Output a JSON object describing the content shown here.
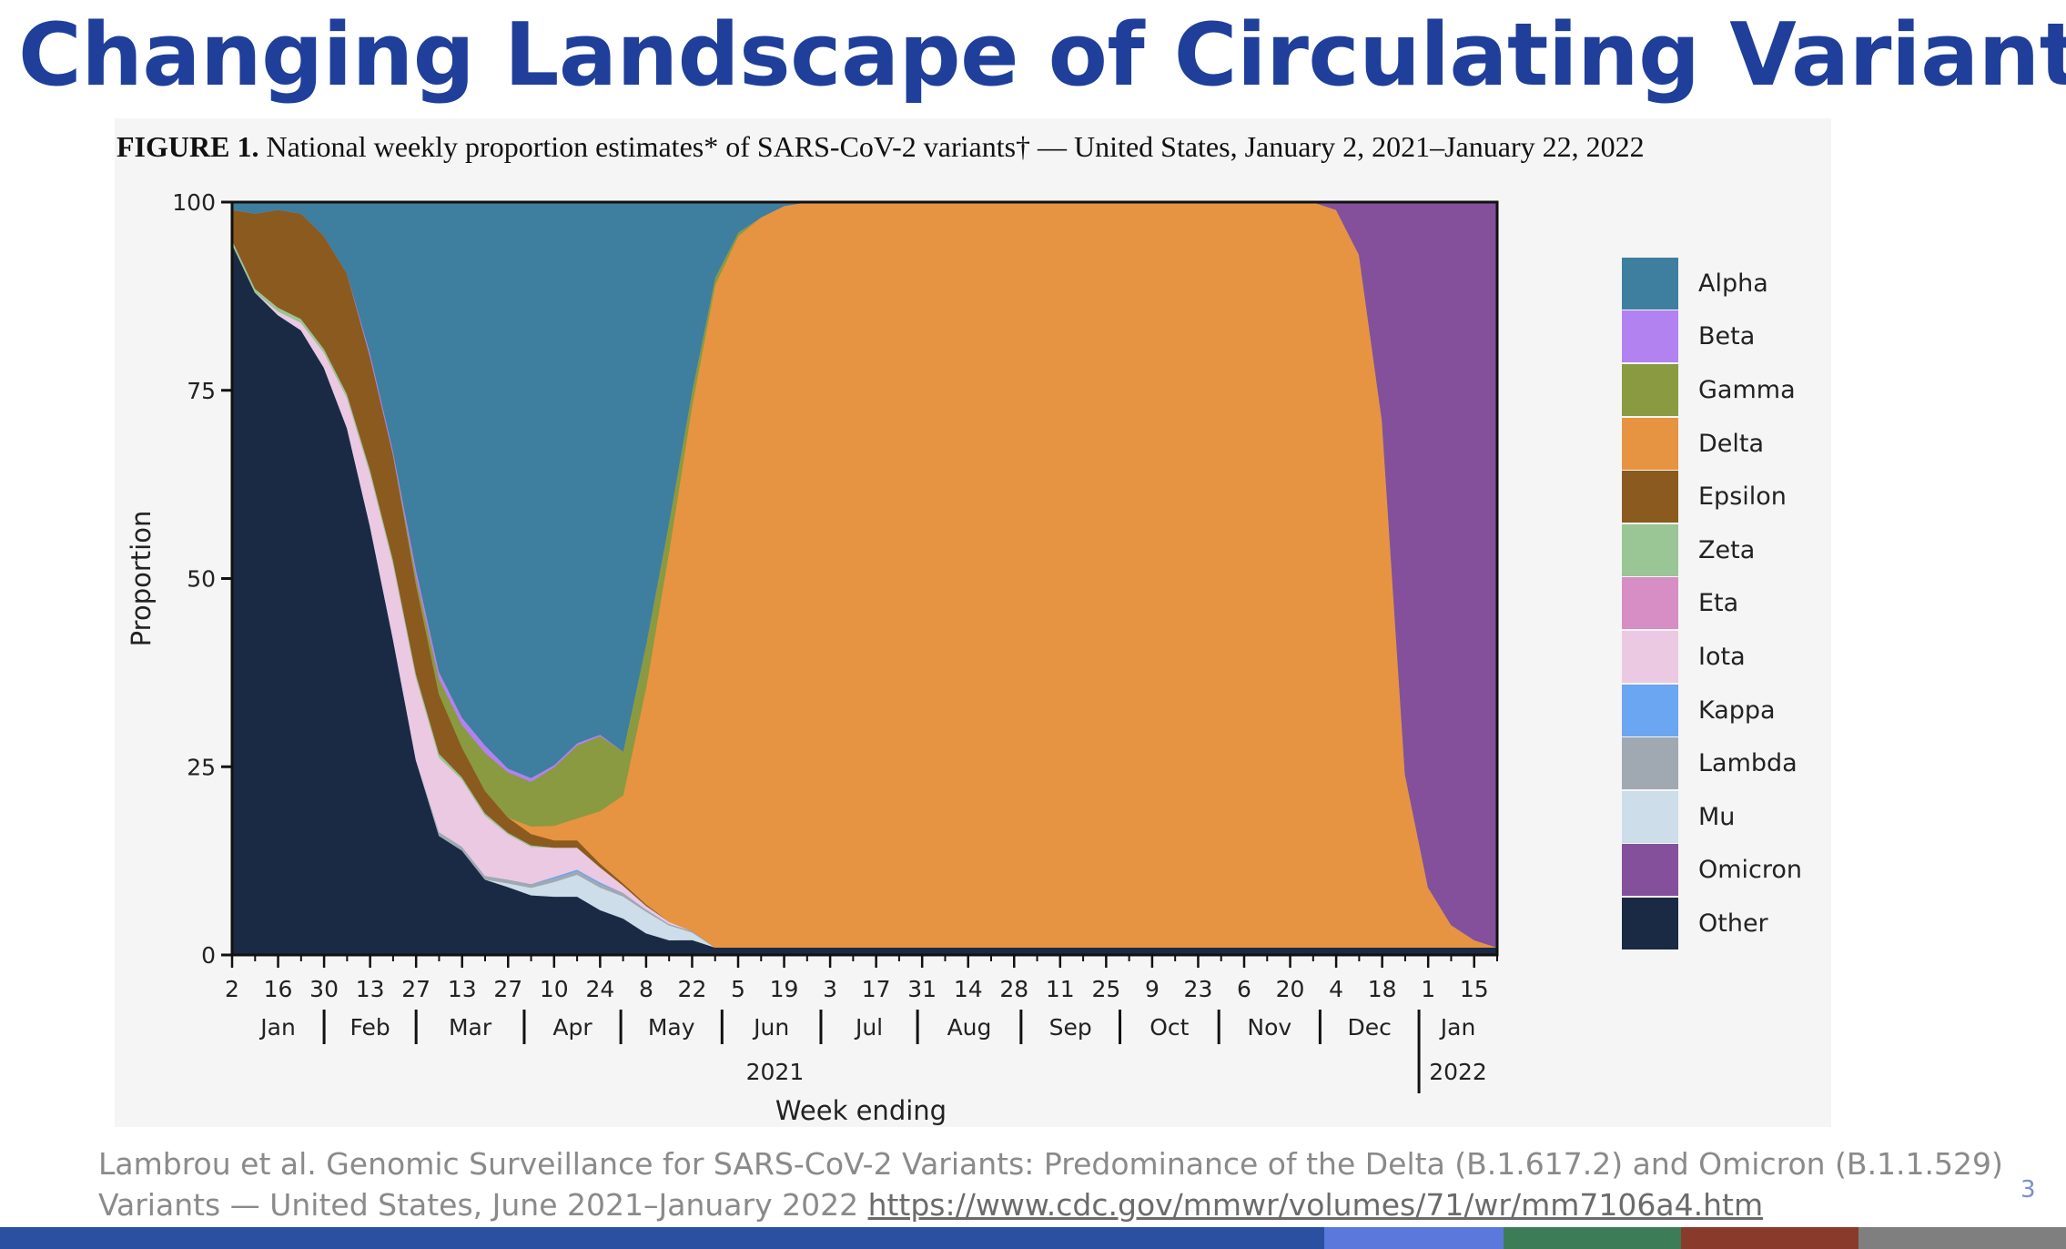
{
  "slide": {
    "title": "Changing Landscape of Circulating Variants",
    "citation_line1": "Lambrou et al. Genomic Surveillance for SARS-CoV-2 Variants: Predominance of the Delta (B.1.617.2) and Omicron (B.1.1.529)",
    "citation_line2_text": "Variants — United States, June 2021–January 2022 ",
    "citation_url": "https://www.cdc.gov/mmwr/volumes/71/wr/mm7106a4.htm",
    "page_number": "3",
    "footer_colors": [
      "#2b4fa1",
      "#5b78dd",
      "#3c7d58",
      "#8a3a2a",
      "#7f7f7f"
    ]
  },
  "chart_data": {
    "type": "area",
    "stacked": true,
    "figure_label": "FIGURE 1.",
    "title": "National weekly proportion estimates* of SARS-CoV-2 variants† — United States, January 2, 2021–January 22, 2022",
    "xlabel": "Week ending",
    "ylabel": "Proportion",
    "ylim": [
      0,
      100
    ],
    "yticks": [
      0,
      25,
      50,
      75,
      100
    ],
    "x_week_labels": [
      "2",
      "16",
      "30",
      "13",
      "27",
      "13",
      "27",
      "10",
      "24",
      "8",
      "22",
      "5",
      "19",
      "3",
      "17",
      "31",
      "14",
      "28",
      "11",
      "25",
      "9",
      "23",
      "6",
      "20",
      "4",
      "18",
      "1",
      "15"
    ],
    "x_label_weeks": [
      0,
      2,
      4,
      6,
      8,
      10,
      12,
      14,
      16,
      18,
      20,
      22,
      24,
      26,
      28,
      30,
      32,
      34,
      36,
      38,
      40,
      42,
      44,
      46,
      48,
      50,
      52,
      54
    ],
    "months": [
      {
        "label": "Jan",
        "start": 0,
        "end": 4
      },
      {
        "label": "Feb",
        "start": 4,
        "end": 8
      },
      {
        "label": "Mar",
        "start": 8,
        "end": 12.7
      },
      {
        "label": "Apr",
        "start": 12.7,
        "end": 16.9
      },
      {
        "label": "May",
        "start": 16.9,
        "end": 21.3
      },
      {
        "label": "Jun",
        "start": 21.3,
        "end": 25.6
      },
      {
        "label": "Jul",
        "start": 25.6,
        "end": 29.8
      },
      {
        "label": "Aug",
        "start": 29.8,
        "end": 34.3
      },
      {
        "label": "Sep",
        "start": 34.3,
        "end": 38.6
      },
      {
        "label": "Oct",
        "start": 38.6,
        "end": 42.9
      },
      {
        "label": "Nov",
        "start": 42.9,
        "end": 47.3
      },
      {
        "label": "Dec",
        "start": 47.3,
        "end": 51.6
      },
      {
        "label": "Jan",
        "start": 51.6,
        "end": 55
      }
    ],
    "year_labels": [
      {
        "label": "2021",
        "at": 23.6
      },
      {
        "label": "2022",
        "at": 53.3
      }
    ],
    "year_divider_week": 51.6,
    "x_max_week": 55,
    "week_points": [
      0,
      1,
      2,
      3,
      4,
      5,
      6,
      7,
      8,
      9,
      10,
      11,
      12,
      13,
      14,
      15,
      16,
      17,
      18,
      19,
      20,
      21,
      22,
      23,
      24,
      25,
      26,
      27,
      28,
      29,
      30,
      31,
      32,
      33,
      34,
      35,
      36,
      37,
      38,
      39,
      40,
      41,
      42,
      43,
      44,
      45,
      46,
      47,
      48,
      49,
      50,
      51,
      52,
      53,
      54,
      55
    ],
    "series": [
      {
        "name": "Other",
        "color": "#1b2a44",
        "values": [
          94,
          88,
          85,
          83,
          78,
          70,
          57,
          42,
          26,
          16,
          14,
          10,
          9,
          8,
          8,
          8,
          6,
          5,
          3,
          2,
          2,
          1,
          1,
          1,
          1,
          1,
          1,
          1,
          1,
          1,
          1,
          1,
          1,
          1,
          1,
          1,
          1,
          1,
          1,
          1,
          1,
          1,
          1,
          1,
          1,
          1,
          1,
          1,
          1,
          1,
          1,
          1,
          1,
          1,
          1,
          1
        ]
      },
      {
        "name": "Mu",
        "color": "#cdddea",
        "values": [
          0,
          0,
          0,
          0,
          0,
          0,
          0,
          0,
          0,
          0,
          0,
          0,
          0.5,
          1,
          2,
          3,
          3,
          3,
          3,
          2,
          1,
          0,
          0,
          0,
          0,
          0,
          0,
          0,
          0,
          0,
          0,
          0,
          0,
          0,
          0,
          0,
          0,
          0,
          0,
          0,
          0,
          0,
          0,
          0,
          0,
          0,
          0,
          0,
          0,
          0,
          0,
          0,
          0,
          0,
          0,
          0
        ]
      },
      {
        "name": "Lambda",
        "color": "#a0a8b2",
        "values": [
          0,
          0,
          0,
          0,
          0,
          0,
          0,
          0,
          0,
          0.5,
          0.5,
          0.5,
          0.5,
          0.5,
          0.5,
          0.5,
          0.5,
          0.5,
          0.3,
          0.2,
          0.2,
          0,
          0,
          0,
          0,
          0,
          0,
          0,
          0,
          0,
          0,
          0,
          0,
          0,
          0,
          0,
          0,
          0,
          0,
          0,
          0,
          0,
          0,
          0,
          0,
          0,
          0,
          0,
          0,
          0,
          0,
          0,
          0,
          0,
          0,
          0
        ]
      },
      {
        "name": "Kappa",
        "color": "#6aa6f2",
        "values": [
          0,
          0,
          0,
          0,
          0,
          0,
          0,
          0,
          0,
          0,
          0,
          0,
          0,
          0,
          0.2,
          0.2,
          0.2,
          0,
          0,
          0,
          0,
          0,
          0,
          0,
          0,
          0,
          0,
          0,
          0,
          0,
          0,
          0,
          0,
          0,
          0,
          0,
          0,
          0,
          0,
          0,
          0,
          0,
          0,
          0,
          0,
          0,
          0,
          0,
          0,
          0,
          0,
          0,
          0,
          0,
          0,
          0
        ]
      },
      {
        "name": "Iota",
        "color": "#ebc9e2",
        "values": [
          0,
          0,
          0.5,
          1,
          2,
          4,
          7,
          10,
          11,
          10,
          9,
          8,
          6,
          5,
          4,
          3,
          2,
          1,
          0.5,
          0.3,
          0,
          0,
          0,
          0,
          0,
          0,
          0,
          0,
          0,
          0,
          0,
          0,
          0,
          0,
          0,
          0,
          0,
          0,
          0,
          0,
          0,
          0,
          0,
          0,
          0,
          0,
          0,
          0,
          0,
          0,
          0,
          0,
          0,
          0,
          0,
          0
        ]
      },
      {
        "name": "Eta",
        "color": "#d78ec4",
        "values": [
          0,
          0,
          0,
          0,
          0,
          0,
          0,
          0,
          0,
          0,
          0,
          0,
          0,
          0,
          0,
          0,
          0,
          0,
          0,
          0,
          0,
          0,
          0,
          0,
          0,
          0,
          0,
          0,
          0,
          0,
          0,
          0,
          0,
          0,
          0,
          0,
          0,
          0,
          0,
          0,
          0,
          0,
          0,
          0,
          0,
          0,
          0,
          0,
          0,
          0,
          0,
          0,
          0,
          0,
          0,
          0
        ]
      },
      {
        "name": "Zeta",
        "color": "#9ac595",
        "values": [
          0.5,
          0.5,
          0.5,
          0.5,
          0.5,
          0.5,
          0.5,
          0.5,
          0.5,
          0.5,
          0.3,
          0.3,
          0.2,
          0.2,
          0,
          0,
          0,
          0,
          0,
          0,
          0,
          0,
          0,
          0,
          0,
          0,
          0,
          0,
          0,
          0,
          0,
          0,
          0,
          0,
          0,
          0,
          0,
          0,
          0,
          0,
          0,
          0,
          0,
          0,
          0,
          0,
          0,
          0,
          0,
          0,
          0,
          0,
          0,
          0,
          0,
          0
        ]
      },
      {
        "name": "Epsilon",
        "color": "#8a5a1f",
        "values": [
          4,
          10,
          13,
          14,
          15,
          16,
          15,
          14,
          12,
          8,
          4,
          3,
          2,
          1.5,
          1,
          1,
          0.5,
          0.3,
          0.2,
          0,
          0,
          0,
          0,
          0,
          0,
          0,
          0,
          0,
          0,
          0,
          0,
          0,
          0,
          0,
          0,
          0,
          0,
          0,
          0,
          0,
          0,
          0,
          0,
          0,
          0,
          0,
          0,
          0,
          0,
          0,
          0,
          0,
          0,
          0,
          0,
          0
        ]
      },
      {
        "name": "Delta",
        "color": "#e69442",
        "values": [
          0,
          0,
          0,
          0,
          0,
          0,
          0,
          0,
          0,
          0,
          0,
          0,
          0,
          1,
          2,
          3,
          7,
          12,
          30,
          50,
          70,
          88,
          94,
          97,
          98.5,
          99,
          99,
          99,
          99,
          99,
          99,
          99,
          99,
          99,
          99,
          99,
          99,
          99,
          99,
          99,
          99,
          99,
          99,
          99,
          99,
          99,
          99,
          99,
          98,
          92,
          70,
          23,
          8,
          3,
          1,
          0
        ]
      },
      {
        "name": "Gamma",
        "color": "#8a9a40",
        "values": [
          0,
          0,
          0,
          0,
          0,
          0,
          0,
          0,
          1,
          2,
          3,
          5,
          6,
          6,
          8,
          10,
          10,
          6,
          6,
          4,
          2,
          1,
          0.5,
          0,
          0,
          0,
          0,
          0,
          0,
          0,
          0,
          0,
          0,
          0,
          0,
          0,
          0,
          0,
          0,
          0,
          0,
          0,
          0,
          0,
          0,
          0,
          0,
          0,
          0,
          0,
          0,
          0,
          0,
          0,
          0,
          0
        ]
      },
      {
        "name": "Beta",
        "color": "#b182f0",
        "values": [
          0,
          0,
          0,
          0,
          0,
          0,
          0.5,
          0.5,
          1,
          1,
          1,
          1,
          0.5,
          0.5,
          0.3,
          0.3,
          0.2,
          0,
          0,
          0,
          0,
          0,
          0,
          0,
          0,
          0,
          0,
          0,
          0,
          0,
          0,
          0,
          0,
          0,
          0,
          0,
          0,
          0,
          0,
          0,
          0,
          0,
          0,
          0,
          0,
          0,
          0,
          0,
          0,
          0,
          0,
          0,
          0,
          0,
          0,
          0
        ]
      },
      {
        "name": "Alpha",
        "color": "#3e7e9e",
        "values": [
          1,
          1.5,
          1,
          1.5,
          4.5,
          9.5,
          20,
          33,
          49,
          63,
          69,
          72,
          75,
          77,
          77,
          74,
          71,
          75,
          61,
          43,
          25,
          10,
          4,
          2,
          0.5,
          0,
          0,
          0,
          0,
          0,
          0,
          0,
          0,
          0,
          0,
          0,
          0,
          0,
          0,
          0,
          0,
          0,
          0,
          0,
          0,
          0,
          0,
          0,
          0,
          0,
          0,
          0,
          0,
          0,
          0,
          0
        ]
      },
      {
        "name": "Omicron",
        "color": "#84509c",
        "values": [
          0,
          0,
          0,
          0,
          0,
          0,
          0,
          0,
          0,
          0,
          0,
          0,
          0,
          0,
          0,
          0,
          0,
          0,
          0,
          0,
          0,
          0,
          0,
          0,
          0,
          0,
          0,
          0,
          0,
          0,
          0,
          0,
          0,
          0,
          0,
          0,
          0,
          0,
          0,
          0,
          0,
          0,
          0,
          0,
          0,
          0,
          0,
          0,
          1,
          7,
          29,
          76,
          91,
          96,
          98,
          99
        ]
      }
    ],
    "legend_order": [
      "Alpha",
      "Beta",
      "Gamma",
      "Delta",
      "Epsilon",
      "Zeta",
      "Eta",
      "Iota",
      "Kappa",
      "Lambda",
      "Mu",
      "Omicron",
      "Other"
    ],
    "legend_placement": "right"
  }
}
